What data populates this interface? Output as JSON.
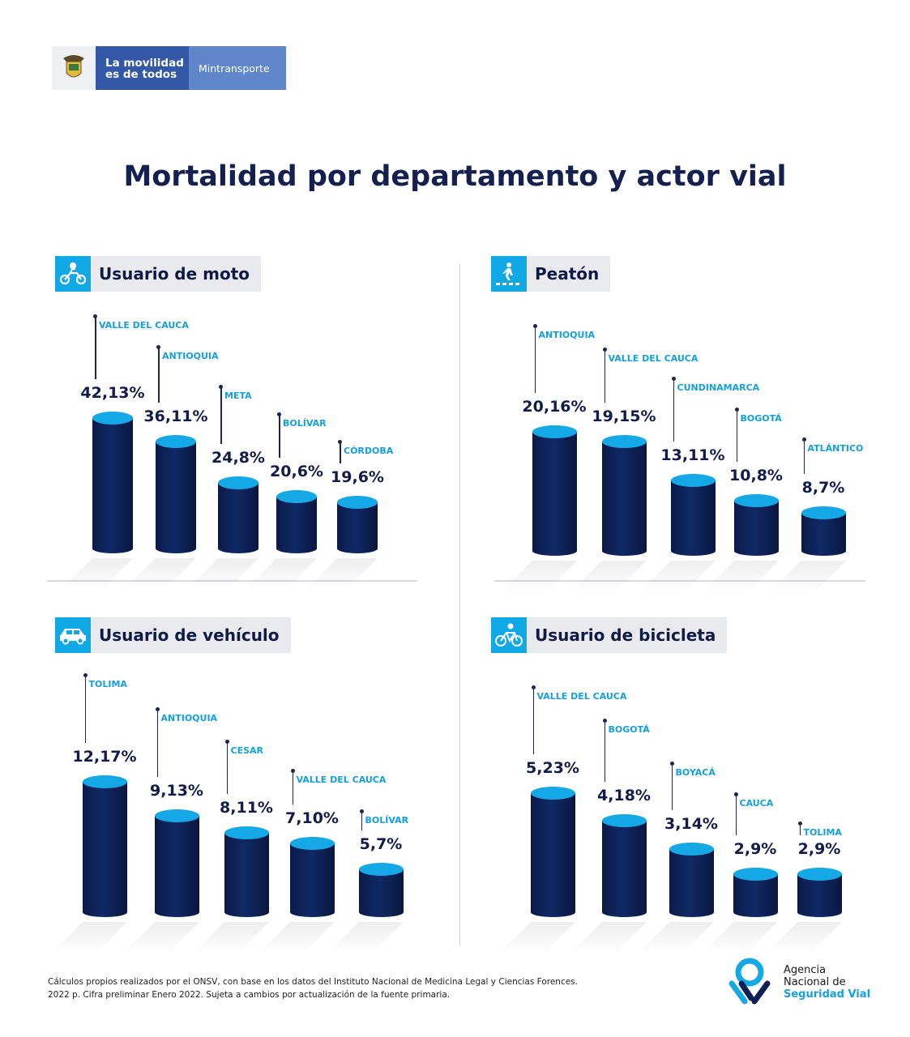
{
  "header": {
    "logo_line1": "La movilidad",
    "logo_line2": "es de todos",
    "ministry": "Mintransporte"
  },
  "title": "Mortalidad por departamento y actor vial",
  "colors": {
    "bar": "#0d1f55",
    "cap": "#14a8e6",
    "label": "#14a0dc",
    "header_icon": "#10a9e6"
  },
  "chart_data": [
    {
      "type": "bar",
      "title": "Usuario de moto",
      "icon": "motorcycle-icon",
      "categories": [
        "VALLE DEL CAUCA",
        "ANTIOQUIA",
        "META",
        "BOLÍVAR",
        "CÓRDOBA"
      ],
      "values": [
        42.13,
        36.11,
        24.8,
        20.6,
        19.6
      ],
      "labels": [
        "42,13%",
        "36,11%",
        "24,8%",
        "20,6%",
        "19,6%"
      ]
    },
    {
      "type": "bar",
      "title": "Peatón",
      "icon": "pedestrian-crossing-icon",
      "categories": [
        "ANTIOQUIA",
        "VALLE DEL CAUCA",
        "CUNDINAMARCA",
        "BOGOTÁ",
        "ATLÁNTICO"
      ],
      "values": [
        20.16,
        19.15,
        13.11,
        10.8,
        8.7
      ],
      "labels": [
        "20,16%",
        "19,15%",
        "13,11%",
        "10,8%",
        "8,7%"
      ]
    },
    {
      "type": "bar",
      "title": "Usuario de vehículo",
      "icon": "car-icon",
      "categories": [
        "TOLIMA",
        "ANTIOQUIA",
        "CESAR",
        "VALLE DEL CAUCA",
        "BOLÍVAR"
      ],
      "values": [
        12.17,
        9.13,
        8.11,
        7.1,
        5.7
      ],
      "labels": [
        "12,17%",
        "9,13%",
        "8,11%",
        "7,10%",
        "5,7%"
      ]
    },
    {
      "type": "bar",
      "title": "Usuario de bicicleta",
      "icon": "bicycle-icon",
      "categories": [
        "VALLE DEL CAUCA",
        "BOGOTÁ",
        "BOYACÁ",
        "CAUCA",
        "TOLIMA"
      ],
      "values": [
        5.23,
        4.18,
        3.14,
        2.9,
        2.9
      ],
      "labels": [
        "5,23%",
        "4,18%",
        "3,14%",
        "2,9%",
        "2,9%"
      ]
    }
  ],
  "footer": {
    "note_line1": "Cálculos propios realizados por el ONSV, con base en los datos del Instituto Nacional de Medicina Legal y Ciencias Forences.",
    "note_line2": "2022 p. Cifra preliminar Enero 2022. Sujeta a cambios por actualización de la fuente primaria.",
    "agency_line1": "Agencia",
    "agency_line2": "Nacional de",
    "agency_line3": "Seguridad Vial"
  }
}
